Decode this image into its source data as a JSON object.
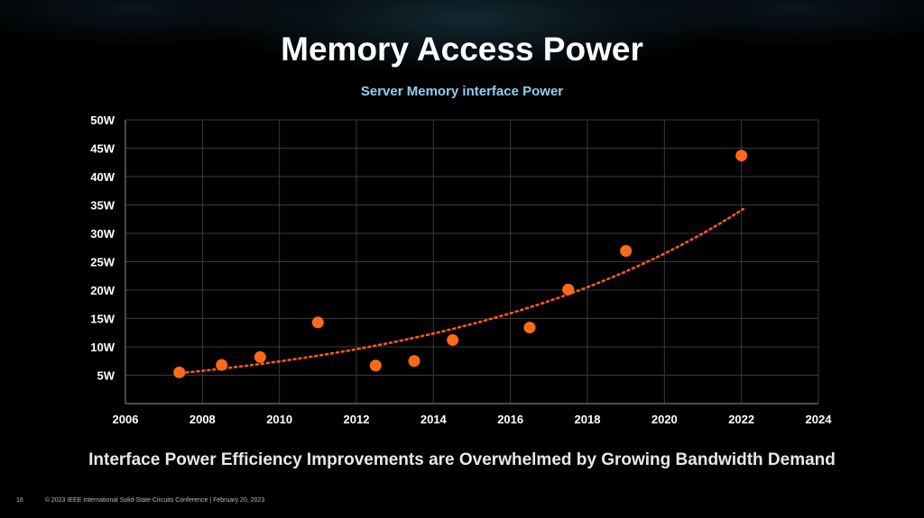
{
  "slide": {
    "title": "Memory Access Power",
    "takeaway": "Interface Power Efficiency Improvements are Overwhelmed by Growing Bandwidth Demand",
    "page_number": "16",
    "footer_text": "© 2023 IEEE International Solid-State Circuits Conference  |  February 20, 2023"
  },
  "colors": {
    "point": "#ff6a1a",
    "trendline": "#ff5a14",
    "grid": "#3a3a3a",
    "subtitle": "#8fd0ee"
  },
  "chart_data": {
    "type": "scatter",
    "title": "Server Memory interface Power",
    "xlabel": "",
    "ylabel": "",
    "xlim": [
      2006,
      2024
    ],
    "ylim": [
      0,
      50
    ],
    "x_ticks": [
      "2006",
      "2008",
      "2010",
      "2012",
      "2014",
      "2016",
      "2018",
      "2020",
      "2022",
      "2024"
    ],
    "y_ticks": [
      "5W",
      "10W",
      "15W",
      "20W",
      "25W",
      "30W",
      "35W",
      "40W",
      "45W",
      "50W"
    ],
    "grid": true,
    "legend": "none",
    "trendline": "exponential fit (dotted)",
    "points": [
      {
        "x": 2007.4,
        "y": 5.5
      },
      {
        "x": 2008.5,
        "y": 6.8
      },
      {
        "x": 2009.5,
        "y": 8.2
      },
      {
        "x": 2011.0,
        "y": 14.3
      },
      {
        "x": 2012.5,
        "y": 6.7
      },
      {
        "x": 2013.5,
        "y": 7.5
      },
      {
        "x": 2014.5,
        "y": 11.2
      },
      {
        "x": 2016.5,
        "y": 13.4
      },
      {
        "x": 2017.5,
        "y": 20.1
      },
      {
        "x": 2019.0,
        "y": 26.9
      },
      {
        "x": 2022.0,
        "y": 43.7
      }
    ]
  }
}
